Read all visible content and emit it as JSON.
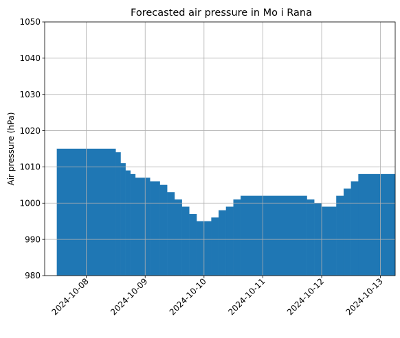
{
  "chart_data": {
    "type": "bar",
    "title": "Forecasted air pressure in Mo i Rana",
    "xlabel": "",
    "ylabel": "Air pressure (hPa)",
    "ylim": [
      980,
      1050
    ],
    "yticks": [
      980,
      990,
      1000,
      1010,
      1020,
      1030,
      1040,
      1050
    ],
    "xlim": [
      "2024-10-07T07:00",
      "2024-10-13T06:00"
    ],
    "xticks": [
      "2024-10-08",
      "2024-10-09",
      "2024-10-10",
      "2024-10-11",
      "2024-10-12",
      "2024-10-13"
    ],
    "xtick_rotation": 45,
    "grid": true,
    "color": "#1f77b4",
    "bars": [
      {
        "start": "2024-10-07T12:00",
        "end": "2024-10-08T12:00",
        "value": 1015
      },
      {
        "start": "2024-10-08T12:00",
        "end": "2024-10-08T14:00",
        "value": 1014
      },
      {
        "start": "2024-10-08T14:00",
        "end": "2024-10-08T16:00",
        "value": 1011
      },
      {
        "start": "2024-10-08T16:00",
        "end": "2024-10-08T18:00",
        "value": 1009
      },
      {
        "start": "2024-10-08T18:00",
        "end": "2024-10-08T20:00",
        "value": 1008
      },
      {
        "start": "2024-10-08T20:00",
        "end": "2024-10-09T02:00",
        "value": 1007
      },
      {
        "start": "2024-10-09T02:00",
        "end": "2024-10-09T06:00",
        "value": 1006
      },
      {
        "start": "2024-10-09T06:00",
        "end": "2024-10-09T09:00",
        "value": 1005
      },
      {
        "start": "2024-10-09T09:00",
        "end": "2024-10-09T12:00",
        "value": 1003
      },
      {
        "start": "2024-10-09T12:00",
        "end": "2024-10-09T15:00",
        "value": 1001
      },
      {
        "start": "2024-10-09T15:00",
        "end": "2024-10-09T18:00",
        "value": 999
      },
      {
        "start": "2024-10-09T18:00",
        "end": "2024-10-09T21:00",
        "value": 997
      },
      {
        "start": "2024-10-09T21:00",
        "end": "2024-10-10T03:00",
        "value": 995
      },
      {
        "start": "2024-10-10T03:00",
        "end": "2024-10-10T06:00",
        "value": 996
      },
      {
        "start": "2024-10-10T06:00",
        "end": "2024-10-10T09:00",
        "value": 998
      },
      {
        "start": "2024-10-10T09:00",
        "end": "2024-10-10T12:00",
        "value": 999
      },
      {
        "start": "2024-10-10T12:00",
        "end": "2024-10-10T15:00",
        "value": 1001
      },
      {
        "start": "2024-10-10T15:00",
        "end": "2024-10-11T18:00",
        "value": 1002
      },
      {
        "start": "2024-10-11T18:00",
        "end": "2024-10-11T21:00",
        "value": 1001
      },
      {
        "start": "2024-10-11T21:00",
        "end": "2024-10-12T00:00",
        "value": 1000
      },
      {
        "start": "2024-10-12T00:00",
        "end": "2024-10-12T06:00",
        "value": 999
      },
      {
        "start": "2024-10-12T06:00",
        "end": "2024-10-12T09:00",
        "value": 1002
      },
      {
        "start": "2024-10-12T09:00",
        "end": "2024-10-12T12:00",
        "value": 1004
      },
      {
        "start": "2024-10-12T12:00",
        "end": "2024-10-12T15:00",
        "value": 1006
      },
      {
        "start": "2024-10-12T15:00",
        "end": "2024-10-13T06:00",
        "value": 1008
      }
    ]
  }
}
